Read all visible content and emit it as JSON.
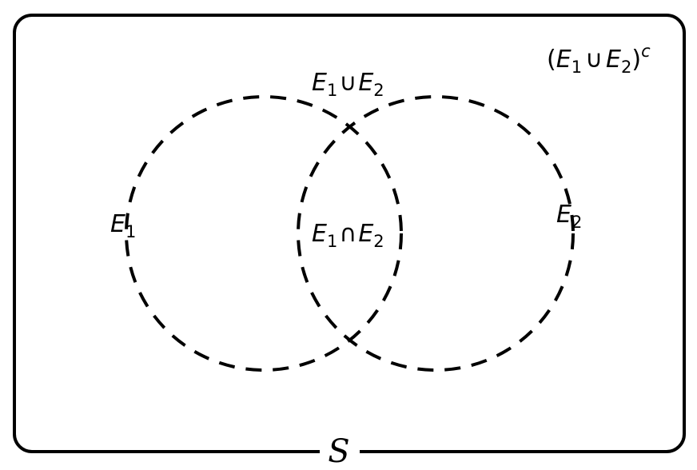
{
  "diagram": {
    "type": "venn",
    "sets": [
      {
        "id": "E1",
        "letter": "E",
        "subscript": "1"
      },
      {
        "id": "E2",
        "letter": "E",
        "subscript": "2"
      }
    ],
    "union_label": {
      "a": "E",
      "a_sub": "1",
      "op": "∪",
      "b": "E",
      "b_sub": "2"
    },
    "intersection_label": {
      "a": "E",
      "a_sub": "1",
      "op": "∩",
      "b": "E",
      "b_sub": "2"
    },
    "complement_label": {
      "open": "(",
      "a": "E",
      "a_sub": "1",
      "op": "∪",
      "b": "E",
      "b_sub": "2",
      "close": ")",
      "sup": "c"
    },
    "sample_space_label": "S",
    "colors": {
      "stroke": "#000000",
      "background": "#ffffff"
    }
  }
}
